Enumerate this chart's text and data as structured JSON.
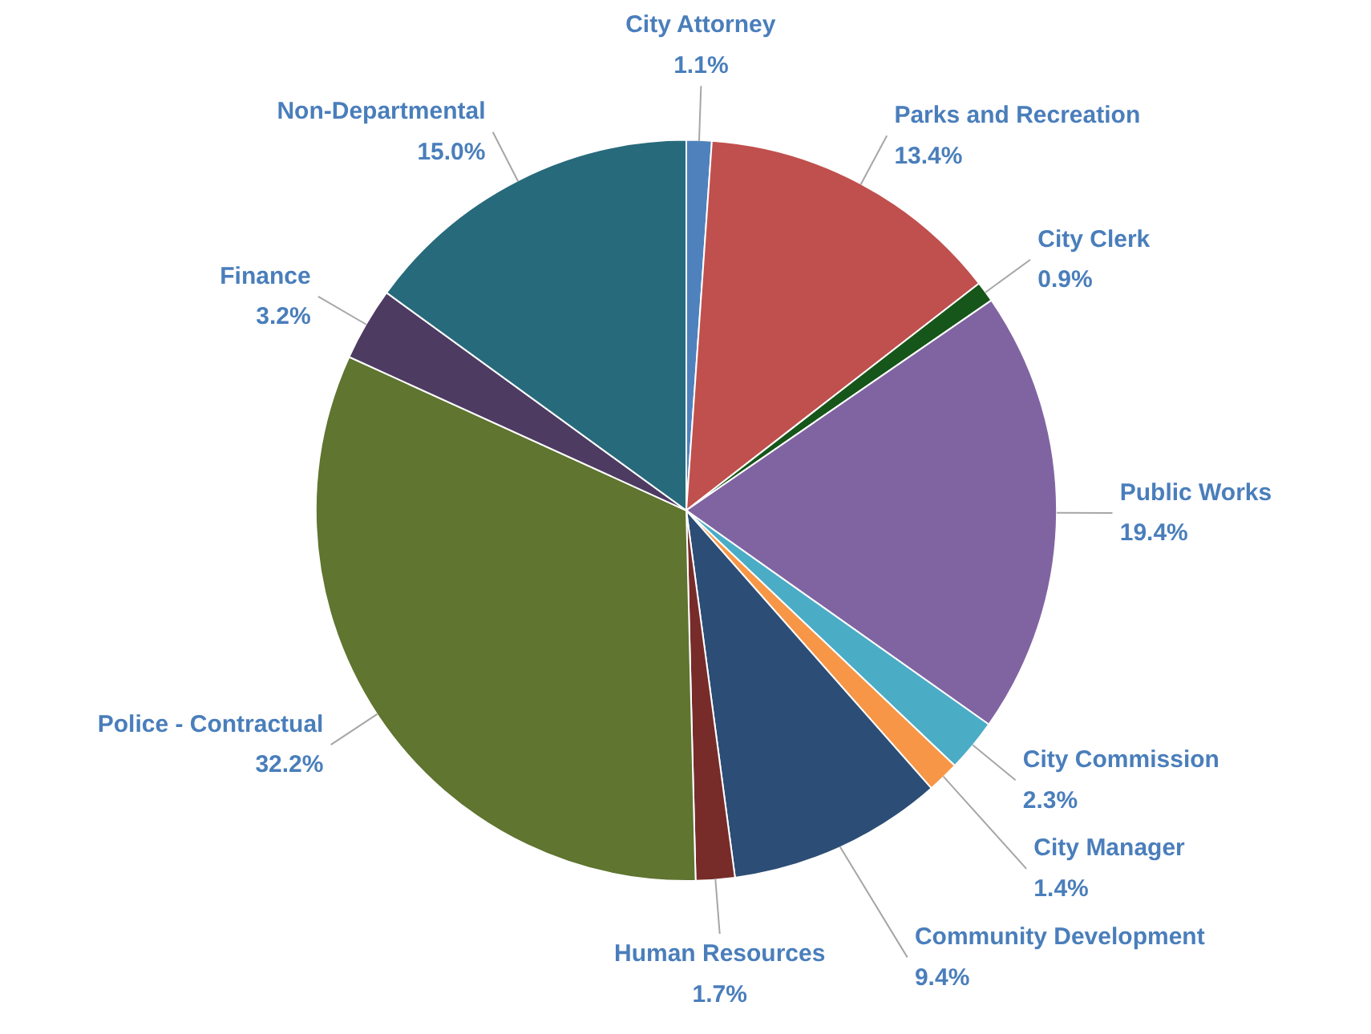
{
  "chart_data": {
    "type": "pie",
    "categories": [
      "City Attorney",
      "Parks and Recreation",
      "City Clerk",
      "Public Works",
      "City Commission",
      "City Manager",
      "Community Development",
      "Human Resources",
      "Police - Contractual",
      "Finance",
      "Non-Departmental"
    ],
    "values": [
      1.1,
      13.4,
      0.9,
      19.4,
      2.3,
      1.4,
      9.4,
      1.7,
      32.2,
      3.2,
      15.0
    ],
    "value_labels": [
      "1.1%",
      "13.4%",
      "0.9%",
      "19.4%",
      "2.3%",
      "1.4%",
      "9.4%",
      "1.7%",
      "32.2%",
      "3.2%",
      "15.0%"
    ],
    "colors": [
      "#4f81bd",
      "#c0504d",
      "#17561a",
      "#8064a2",
      "#4bacc6",
      "#f79646",
      "#2c4d75",
      "#772c2a",
      "#5f7530",
      "#4d3b62",
      "#276a7c"
    ]
  }
}
